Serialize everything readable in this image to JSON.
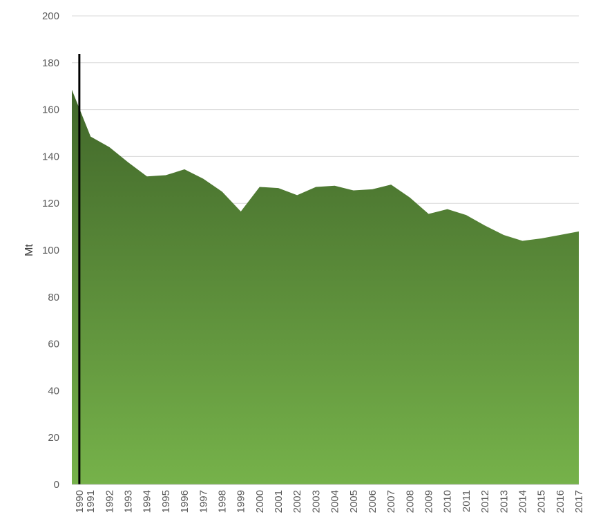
{
  "chart_data": {
    "type": "area",
    "title": "",
    "xlabel": "",
    "ylabel": "Mt",
    "ylim": [
      0,
      200
    ],
    "yticks": [
      0,
      20,
      40,
      60,
      80,
      100,
      120,
      140,
      160,
      180,
      200
    ],
    "grid": true,
    "legend": "none",
    "fill_gradient": [
      "#41672a",
      "#76b24a"
    ],
    "marker_line_color": "#000000",
    "marker_line_at": "1990",
    "categories": [
      "1990",
      "1991",
      "1992",
      "1993",
      "1994",
      "1995",
      "1996",
      "1997",
      "1998",
      "1999",
      "2000",
      "2001",
      "2002",
      "2003",
      "2004",
      "2005",
      "2006",
      "2007",
      "2008",
      "2009",
      "2010",
      "2011",
      "2012",
      "2013",
      "2014",
      "2015",
      "2016",
      "2017"
    ],
    "series": [
      {
        "values": [
          168.5,
          148.5,
          144,
          137.5,
          131.5,
          132,
          134.5,
          130.5,
          125,
          116.5,
          127,
          126.5,
          123.5,
          127,
          127.5,
          125.5,
          126,
          128,
          122.5,
          115.5,
          117.5,
          115,
          110.5,
          106.5,
          104,
          105,
          106.5,
          108
        ]
      }
    ]
  }
}
